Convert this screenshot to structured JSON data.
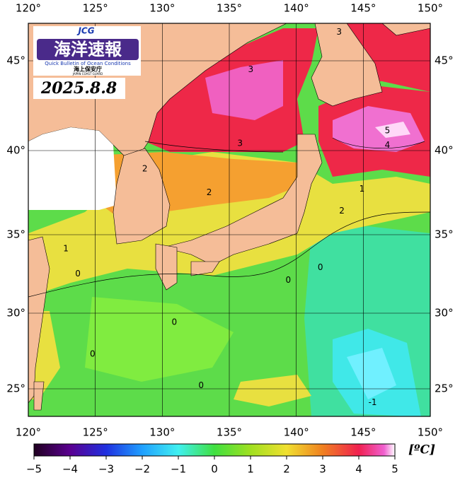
{
  "logo": {
    "badge": "JCG",
    "title": "海洋速報",
    "subtitle": "Quick Bulletin of Ocean Conditions",
    "agency": "海上保安庁",
    "agency_en": "JAPAN COAST GUARD"
  },
  "date": "2025.8.8",
  "map": {
    "xlim": [
      120,
      150
    ],
    "ylim": [
      23.2,
      47.1
    ],
    "xticks": [
      {
        "value": 120,
        "label": "120°"
      },
      {
        "value": 125,
        "label": "125°"
      },
      {
        "value": 130,
        "label": "130°"
      },
      {
        "value": 135,
        "label": "135°"
      },
      {
        "value": 140,
        "label": "140°"
      },
      {
        "value": 145,
        "label": "145°"
      },
      {
        "value": 150,
        "label": "150°"
      }
    ],
    "yticks": [
      {
        "value": 25,
        "label": "25°"
      },
      {
        "value": 30,
        "label": "30°"
      },
      {
        "value": 35,
        "label": "35°"
      },
      {
        "value": 40,
        "label": "40°"
      },
      {
        "value": 45,
        "label": "45°"
      }
    ],
    "contours": [
      {
        "lon": 136.6,
        "lat": 44.5,
        "value": 3
      },
      {
        "lon": 135.8,
        "lat": 40.4,
        "value": 3
      },
      {
        "lon": 128.7,
        "lat": 38.9,
        "value": 2
      },
      {
        "lon": 133.5,
        "lat": 37.5,
        "value": 2
      },
      {
        "lon": 146.8,
        "lat": 41.1,
        "value": 5
      },
      {
        "lon": 146.8,
        "lat": 40.3,
        "value": 4
      },
      {
        "lon": 144.9,
        "lat": 37.7,
        "value": 1
      },
      {
        "lon": 143.4,
        "lat": 36.4,
        "value": 2
      },
      {
        "lon": 122.8,
        "lat": 34.1,
        "value": 1
      },
      {
        "lon": 123.7,
        "lat": 32.5,
        "value": 0
      },
      {
        "lon": 141.8,
        "lat": 32.9,
        "value": 0
      },
      {
        "lon": 139.4,
        "lat": 32.1,
        "value": 0
      },
      {
        "lon": 130.9,
        "lat": 29.4,
        "value": 0
      },
      {
        "lon": 124.8,
        "lat": 27.3,
        "value": 0
      },
      {
        "lon": 132.9,
        "lat": 25.2,
        "value": 0
      },
      {
        "lon": 145.7,
        "lat": 24.1,
        "value": -1
      },
      {
        "lon": 143.2,
        "lat": 46.6,
        "value": 3
      }
    ]
  },
  "colorbar": {
    "lim": [
      -5,
      5
    ],
    "unit": "[ºC]",
    "ticks": [
      {
        "value": -5,
        "label": "−5"
      },
      {
        "value": -4,
        "label": "−4"
      },
      {
        "value": -3,
        "label": "−3"
      },
      {
        "value": -2,
        "label": "−2"
      },
      {
        "value": -1,
        "label": "−1"
      },
      0,
      1,
      2,
      3,
      4,
      5
    ]
  }
}
